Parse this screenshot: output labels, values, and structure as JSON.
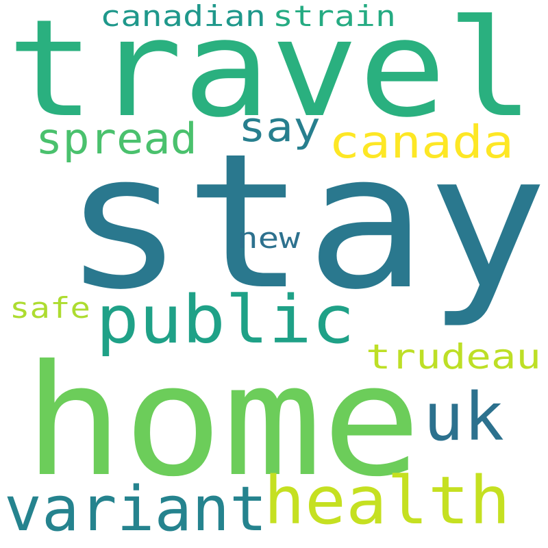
{
  "words": [
    {
      "text": "stay",
      "color": "#2a788e"
    },
    {
      "text": "travel",
      "color": "#2ab07f"
    },
    {
      "text": "home",
      "color": "#6ccd5a"
    },
    {
      "text": "public",
      "color": "#1fa187"
    },
    {
      "text": "health",
      "color": "#c5e021"
    },
    {
      "text": "variant",
      "color": "#25838e"
    },
    {
      "text": "uk",
      "color": "#2c718e"
    },
    {
      "text": "canada",
      "color": "#fde725"
    },
    {
      "text": "spread",
      "color": "#4ac16d"
    },
    {
      "text": "say",
      "color": "#277f8e"
    },
    {
      "text": "trudeau",
      "color": "#bddf26"
    },
    {
      "text": "canadian",
      "color": "#1f988b"
    },
    {
      "text": "strain",
      "color": "#25ab82"
    },
    {
      "text": "new",
      "color": "#2d718e"
    },
    {
      "text": "safe",
      "color": "#addc30"
    }
  ]
}
